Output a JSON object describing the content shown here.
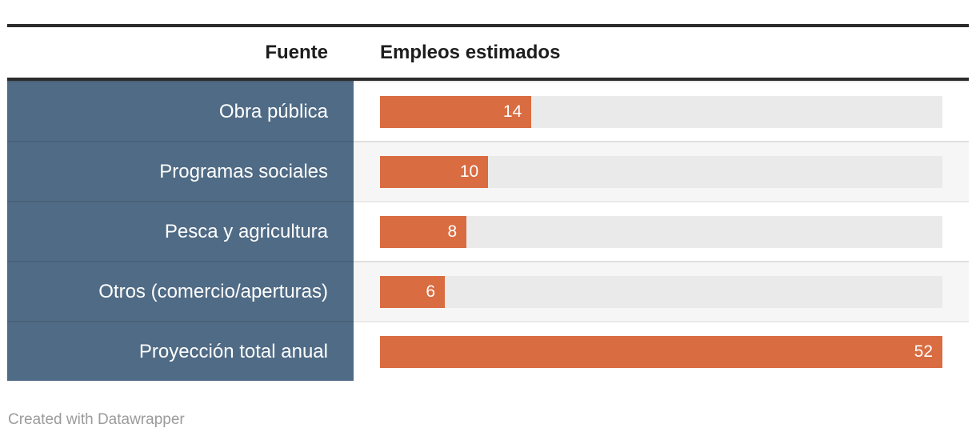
{
  "table": {
    "columns": [
      {
        "label": "Fuente"
      },
      {
        "label": "Empleos estimados"
      }
    ],
    "rows": [
      {
        "label": "Obra pública",
        "value": "14"
      },
      {
        "label": "Programas sociales",
        "value": "10"
      },
      {
        "label": "Pesca y agricultura",
        "value": "8"
      },
      {
        "label": "Otros (comercio/aperturas)",
        "value": "6"
      },
      {
        "label": "Proyección total anual",
        "value": "52"
      }
    ],
    "max_value": 52
  },
  "footer": {
    "attribution": "Created with Datawrapper"
  },
  "colors": {
    "bar": "#D96C41",
    "bar_track": "#EAEAEA",
    "label_cell_bg": "#506B85",
    "label_text": "#FFFFFF",
    "header_text": "#1D1D1D",
    "rule": "#2B2B2B",
    "row_stripe": "#F6F6F6",
    "footer_text": "#9B9B9B"
  },
  "chart_data": {
    "type": "bar",
    "orientation": "horizontal",
    "title": "",
    "xlabel": "Empleos estimados",
    "ylabel": "Fuente",
    "categories": [
      "Obra pública",
      "Programas sociales",
      "Pesca y agricultura",
      "Otros (comercio/aperturas)",
      "Proyección total anual"
    ],
    "values": [
      14,
      10,
      8,
      6,
      52
    ],
    "xlim": [
      0,
      52
    ],
    "grid": false,
    "legend": false,
    "bar_color": "#D96C41",
    "data_labels": "inside-end"
  }
}
